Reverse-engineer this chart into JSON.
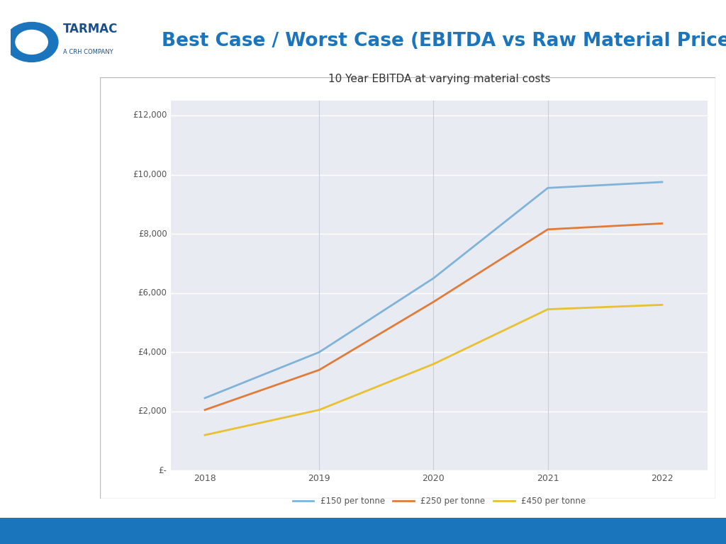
{
  "title_main": "Best Case / Worst Case (EBITDA vs Raw Material Price)",
  "title_main_color": "#1B75BC",
  "chart_title": "10 Year EBITDA at varying material costs",
  "background_color": "#FFFFFF",
  "plot_bg_color": "#E8ECF2",
  "plot_inner_bg": "#FFFFFF",
  "x_values": [
    2018,
    2019,
    2020,
    2021,
    2022
  ],
  "series": [
    {
      "label": "£150 per tonne",
      "color": "#7FB3D9",
      "values": [
        2450,
        4000,
        6500,
        9550,
        9750
      ]
    },
    {
      "label": "£250 per tonne",
      "color": "#E07B39",
      "values": [
        2050,
        3400,
        5700,
        8150,
        8350
      ]
    },
    {
      "label": "£450 per tonne",
      "color": "#E8C030",
      "values": [
        1200,
        2050,
        3600,
        5450,
        5600
      ]
    }
  ],
  "y_ticks": [
    0,
    2000,
    4000,
    6000,
    8000,
    10000,
    12000
  ],
  "y_tick_labels": [
    "£-",
    "£2,000",
    "£4,000",
    "£6,000",
    "£8,000",
    "£10,000",
    "£12,000"
  ],
  "ylim": [
    0,
    12500
  ],
  "xlim": [
    2017.7,
    2022.4
  ],
  "vline_color": "#C8CDD8",
  "vlines": [
    2019,
    2020,
    2021
  ],
  "tarmac_circle_color": "#1B75BC",
  "tarmac_text_color": "#1B4F8A",
  "chart_border_color": "#BBBBBB",
  "bottom_bar_color": "#1B75BC",
  "legend_line_color": "#888888"
}
